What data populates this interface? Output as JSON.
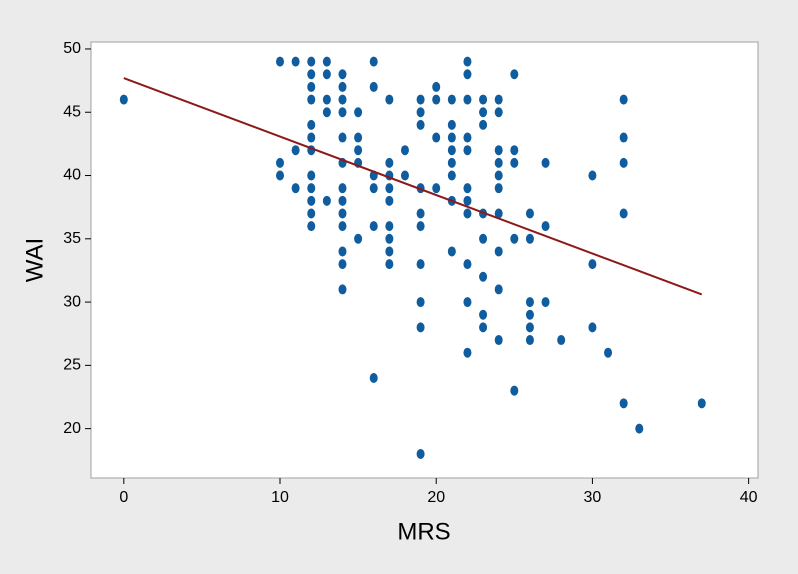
{
  "chart_data": {
    "type": "scatter",
    "xlabel": "MRS",
    "ylabel": "WAI",
    "x": [
      0,
      10,
      10,
      10,
      11,
      11,
      11,
      12,
      12,
      12,
      12,
      12,
      12,
      12,
      12,
      12,
      12,
      12,
      12,
      13,
      13,
      13,
      13,
      13,
      14,
      14,
      14,
      14,
      14,
      14,
      14,
      14,
      14,
      14,
      14,
      14,
      14,
      15,
      15,
      15,
      15,
      15,
      16,
      16,
      16,
      16,
      16,
      16,
      17,
      17,
      17,
      17,
      17,
      17,
      17,
      17,
      17,
      18,
      18,
      19,
      19,
      19,
      19,
      19,
      19,
      19,
      19,
      19,
      19,
      20,
      20,
      20,
      20,
      21,
      21,
      21,
      21,
      21,
      21,
      21,
      21,
      22,
      22,
      22,
      22,
      22,
      22,
      22,
      22,
      22,
      22,
      22,
      23,
      23,
      23,
      23,
      23,
      23,
      23,
      23,
      24,
      24,
      24,
      24,
      24,
      24,
      24,
      24,
      24,
      24,
      25,
      25,
      25,
      25,
      25,
      26,
      26,
      26,
      26,
      26,
      26,
      27,
      27,
      27,
      28,
      30,
      30,
      30,
      31,
      32,
      32,
      32,
      32,
      32,
      33,
      37
    ],
    "y": [
      46,
      49,
      41,
      40,
      49,
      42,
      39,
      49,
      48,
      47,
      46,
      44,
      43,
      42,
      40,
      39,
      38,
      37,
      36,
      49,
      48,
      46,
      45,
      38,
      48,
      47,
      46,
      45,
      43,
      41,
      39,
      38,
      37,
      36,
      34,
      33,
      31,
      45,
      43,
      42,
      41,
      35,
      49,
      47,
      40,
      39,
      36,
      24,
      46,
      41,
      40,
      39,
      38,
      36,
      35,
      34,
      33,
      42,
      40,
      46,
      45,
      44,
      39,
      37,
      36,
      33,
      30,
      28,
      18,
      47,
      46,
      43,
      39,
      46,
      44,
      43,
      42,
      41,
      40,
      38,
      34,
      49,
      48,
      46,
      43,
      42,
      39,
      38,
      37,
      33,
      30,
      26,
      46,
      45,
      44,
      37,
      35,
      32,
      29,
      28,
      46,
      45,
      42,
      41,
      40,
      39,
      37,
      34,
      31,
      27,
      48,
      42,
      41,
      35,
      23,
      37,
      35,
      30,
      29,
      28,
      27,
      41,
      36,
      30,
      27,
      40,
      33,
      28,
      26,
      46,
      43,
      41,
      37,
      22,
      20,
      22
    ],
    "color": "#0f5c9e",
    "regression_line": {
      "x": [
        0,
        37
      ],
      "y": [
        47.7,
        30.6
      ],
      "color": "#8b1a1a"
    },
    "xlim": [
      -2.1,
      40.6
    ],
    "ylim": [
      16.1,
      50.55
    ],
    "xticks": [
      0,
      10,
      20,
      30,
      40
    ],
    "yticks": [
      20,
      25,
      30,
      35,
      40,
      45,
      50
    ]
  }
}
